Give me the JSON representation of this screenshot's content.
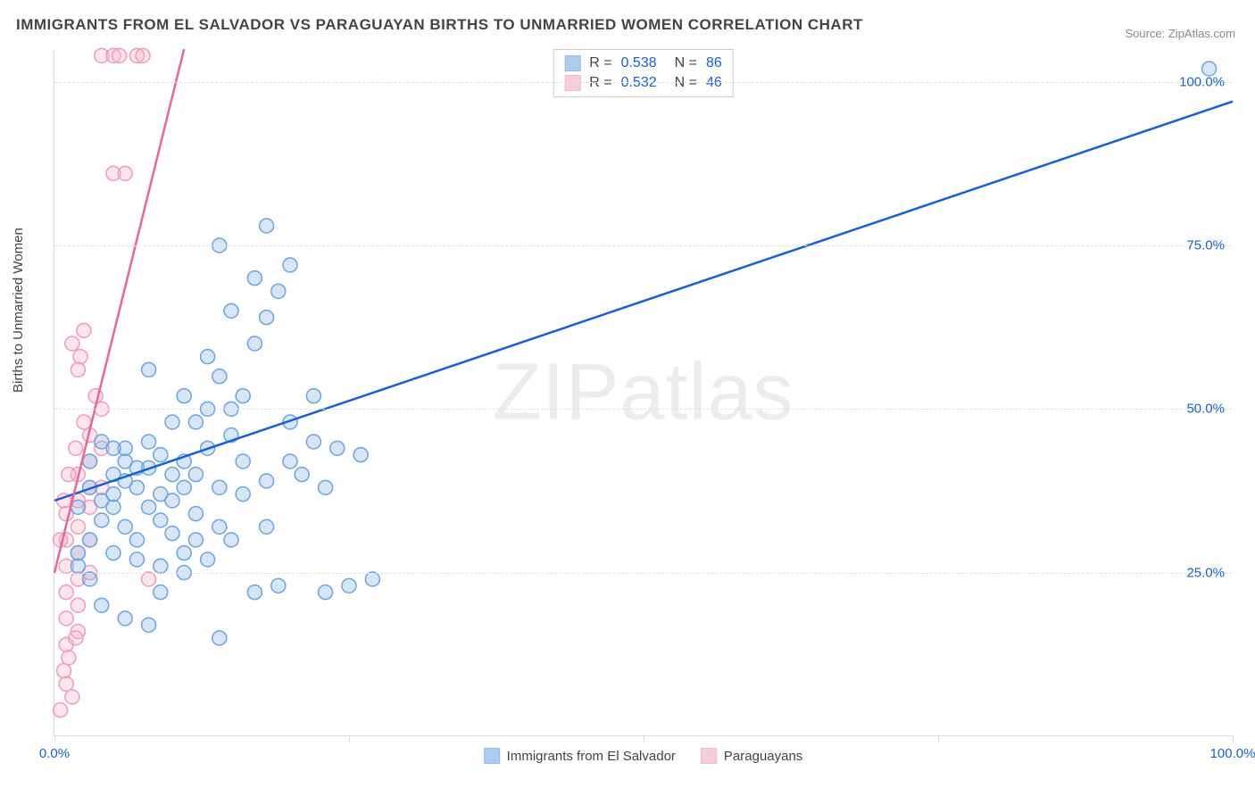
{
  "title": "IMMIGRANTS FROM EL SALVADOR VS PARAGUAYAN BIRTHS TO UNMARRIED WOMEN CORRELATION CHART",
  "source_prefix": "Source: ",
  "source_name": "ZipAtlas.com",
  "y_axis_label": "Births to Unmarried Women",
  "watermark": "ZIPatlas",
  "chart": {
    "type": "scatter",
    "xlim": [
      0,
      100
    ],
    "ylim": [
      0,
      105
    ],
    "x_ticks": [
      0,
      25,
      50,
      75,
      100
    ],
    "x_tick_labels": {
      "0": "0.0%",
      "100": "100.0%"
    },
    "y_ticks": [
      25,
      50,
      75,
      100
    ],
    "y_tick_labels": {
      "25": "25.0%",
      "50": "50.0%",
      "75": "75.0%",
      "100": "100.0%"
    },
    "background_color": "#ffffff",
    "grid_color": "#e0e0e0",
    "axis_color": "#dddddd",
    "tick_label_color": "#1560d8",
    "marker_radius": 8,
    "marker_fill_opacity": 0.35,
    "marker_stroke_width": 1.5,
    "line_width": 2.5
  },
  "series": [
    {
      "name": "Immigrants from El Salvador",
      "color": "#8db8e8",
      "stroke": "#6ba3e0",
      "line_color": "#1560d8",
      "r_value": "0.538",
      "n_value": "86",
      "trend_line": {
        "x1": 0,
        "y1": 36,
        "x2": 100,
        "y2": 97
      },
      "points": [
        [
          98,
          102
        ],
        [
          2,
          35
        ],
        [
          3,
          38
        ],
        [
          4,
          36
        ],
        [
          5,
          40
        ],
        [
          6,
          42
        ],
        [
          3,
          30
        ],
        [
          5,
          35
        ],
        [
          7,
          38
        ],
        [
          8,
          41
        ],
        [
          4,
          45
        ],
        [
          6,
          44
        ],
        [
          9,
          43
        ],
        [
          10,
          40
        ],
        [
          11,
          38
        ],
        [
          12,
          48
        ],
        [
          8,
          56
        ],
        [
          14,
          55
        ],
        [
          13,
          58
        ],
        [
          15,
          50
        ],
        [
          16,
          52
        ],
        [
          17,
          60
        ],
        [
          15,
          65
        ],
        [
          18,
          64
        ],
        [
          19,
          68
        ],
        [
          17,
          70
        ],
        [
          14,
          75
        ],
        [
          20,
          72
        ],
        [
          18,
          78
        ],
        [
          6,
          39
        ],
        [
          7,
          41
        ],
        [
          5,
          37
        ],
        [
          8,
          35
        ],
        [
          9,
          37
        ],
        [
          10,
          36
        ],
        [
          11,
          42
        ],
        [
          12,
          40
        ],
        [
          13,
          44
        ],
        [
          6,
          32
        ],
        [
          7,
          30
        ],
        [
          9,
          33
        ],
        [
          10,
          31
        ],
        [
          12,
          34
        ],
        [
          14,
          38
        ],
        [
          16,
          42
        ],
        [
          15,
          46
        ],
        [
          13,
          50
        ],
        [
          11,
          52
        ],
        [
          10,
          48
        ],
        [
          8,
          45
        ],
        [
          5,
          28
        ],
        [
          7,
          27
        ],
        [
          9,
          26
        ],
        [
          11,
          28
        ],
        [
          13,
          27
        ],
        [
          15,
          30
        ],
        [
          18,
          32
        ],
        [
          20,
          42
        ],
        [
          22,
          45
        ],
        [
          24,
          44
        ],
        [
          26,
          43
        ],
        [
          17,
          22
        ],
        [
          19,
          23
        ],
        [
          23,
          22
        ],
        [
          25,
          23
        ],
        [
          27,
          24
        ],
        [
          14,
          15
        ],
        [
          8,
          17
        ],
        [
          6,
          18
        ],
        [
          4,
          20
        ],
        [
          3,
          24
        ],
        [
          2,
          26
        ],
        [
          2,
          28
        ],
        [
          4,
          33
        ],
        [
          3,
          42
        ],
        [
          5,
          44
        ],
        [
          16,
          37
        ],
        [
          18,
          39
        ],
        [
          20,
          48
        ],
        [
          22,
          52
        ],
        [
          12,
          30
        ],
        [
          14,
          32
        ],
        [
          11,
          25
        ],
        [
          9,
          22
        ],
        [
          21,
          40
        ],
        [
          23,
          38
        ]
      ]
    },
    {
      "name": "Paraguayans",
      "color": "#f7b8c8",
      "stroke": "#f09bb5",
      "line_color": "#ea6699",
      "r_value": "0.532",
      "n_value": "46",
      "trend_line": {
        "x1": 0,
        "y1": 25,
        "x2": 11,
        "y2": 105
      },
      "points": [
        [
          1,
          14
        ],
        [
          1,
          18
        ],
        [
          1,
          22
        ],
        [
          1,
          26
        ],
        [
          1,
          30
        ],
        [
          1,
          34
        ],
        [
          2,
          16
        ],
        [
          2,
          20
        ],
        [
          2,
          24
        ],
        [
          2,
          28
        ],
        [
          2,
          32
        ],
        [
          2,
          36
        ],
        [
          2,
          40
        ],
        [
          3,
          25
        ],
        [
          3,
          30
        ],
        [
          3,
          35
        ],
        [
          3,
          38
        ],
        [
          3,
          42
        ],
        [
          3,
          46
        ],
        [
          4,
          50
        ],
        [
          4,
          44
        ],
        [
          4,
          38
        ],
        [
          1.5,
          60
        ],
        [
          2,
          56
        ],
        [
          2.5,
          62
        ],
        [
          4,
          104
        ],
        [
          5,
          104
        ],
        [
          5.5,
          104
        ],
        [
          7,
          104
        ],
        [
          7.5,
          104
        ],
        [
          5,
          86
        ],
        [
          6,
          86
        ],
        [
          2.5,
          48
        ],
        [
          3.5,
          52
        ],
        [
          1.2,
          12
        ],
        [
          1.8,
          15
        ],
        [
          0.8,
          10
        ],
        [
          0.5,
          4
        ],
        [
          1,
          8
        ],
        [
          1.5,
          6
        ],
        [
          8,
          24
        ],
        [
          2.2,
          58
        ],
        [
          1.8,
          44
        ],
        [
          1.2,
          40
        ],
        [
          0.8,
          36
        ],
        [
          0.5,
          30
        ]
      ]
    }
  ],
  "stat_legend": {
    "r_label": "R =",
    "n_label": "N ="
  },
  "bottom_legend_labels": [
    "Immigrants from El Salvador",
    "Paraguayans"
  ]
}
